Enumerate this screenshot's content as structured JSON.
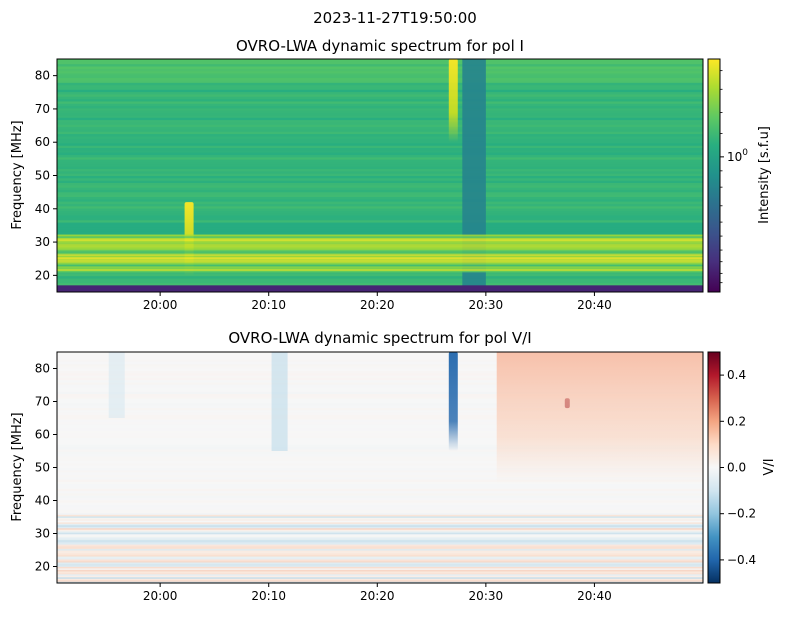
{
  "suptitle": "2023-11-27T19:50:00",
  "chart_data": [
    {
      "type": "heatmap",
      "title": "OVRO-LWA dynamic spectrum for pol I",
      "ylabel": "Frequency [MHz]",
      "xlabel": "",
      "x_ticks": [
        "20:00",
        "20:10",
        "20:20",
        "20:30",
        "20:40"
      ],
      "x_range": [
        "19:50:30",
        "20:50:00"
      ],
      "y_ticks": [
        20,
        30,
        40,
        50,
        60,
        70,
        80
      ],
      "ylim": [
        15,
        85
      ],
      "colormap": "viridis",
      "colorbar": {
        "label": "Intensity [s.f.u]",
        "scale": "log",
        "tick_labels": [
          "10^0"
        ],
        "tick_values": [
          1
        ]
      },
      "features": [
        {
          "kind": "data_gap_column",
          "time_start": "20:27:50",
          "time_end": "20:30:00",
          "freq_range": [
            15,
            85
          ],
          "level": 0.45
        },
        {
          "kind": "burst",
          "time": "20:27:00",
          "freq_range": [
            60,
            85
          ],
          "level": 0.95
        },
        {
          "kind": "burst",
          "time": "20:02:40",
          "freq_range": [
            20,
            42
          ],
          "level": 0.9
        },
        {
          "kind": "rfi_band",
          "freq_range": [
            21,
            32
          ],
          "level": 0.85
        },
        {
          "kind": "low_band",
          "freq_range": [
            15,
            17
          ],
          "level": 0.1
        }
      ]
    },
    {
      "type": "heatmap",
      "title": "OVRO-LWA dynamic spectrum for pol V/I",
      "ylabel": "Frequency [MHz]",
      "xlabel": "",
      "x_ticks": [
        "20:00",
        "20:10",
        "20:20",
        "20:30",
        "20:40"
      ],
      "x_range": [
        "19:50:30",
        "20:50:00"
      ],
      "y_ticks": [
        20,
        30,
        40,
        50,
        60,
        70,
        80
      ],
      "ylim": [
        15,
        85
      ],
      "colormap": "RdBu_r",
      "colorbar": {
        "label": "V/I",
        "range": [
          -0.5,
          0.5
        ],
        "tick_labels": [
          "−0.4",
          "−0.2",
          "0.0",
          "0.2",
          "0.4"
        ],
        "tick_values": [
          -0.4,
          -0.2,
          0.0,
          0.2,
          0.4
        ]
      },
      "features": [
        {
          "kind": "burst",
          "time": "20:27:00",
          "freq_range": [
            55,
            85
          ],
          "value": -0.4
        },
        {
          "kind": "burst",
          "time": "20:37:30",
          "freq_range": [
            68,
            71
          ],
          "value": 0.45
        },
        {
          "kind": "positive_region",
          "time_start": "20:31:00",
          "time_end": "20:50:00",
          "freq_range": [
            45,
            85
          ],
          "value": 0.12
        },
        {
          "kind": "faint_negative",
          "time": "20:11:00",
          "freq_range": [
            55,
            85
          ],
          "value": -0.15
        },
        {
          "kind": "faint_negative",
          "time": "19:56:00",
          "freq_range": [
            65,
            85
          ],
          "value": -0.1
        },
        {
          "kind": "rfi_band",
          "freq_range": [
            15,
            36
          ],
          "value": "mixed"
        }
      ]
    }
  ]
}
